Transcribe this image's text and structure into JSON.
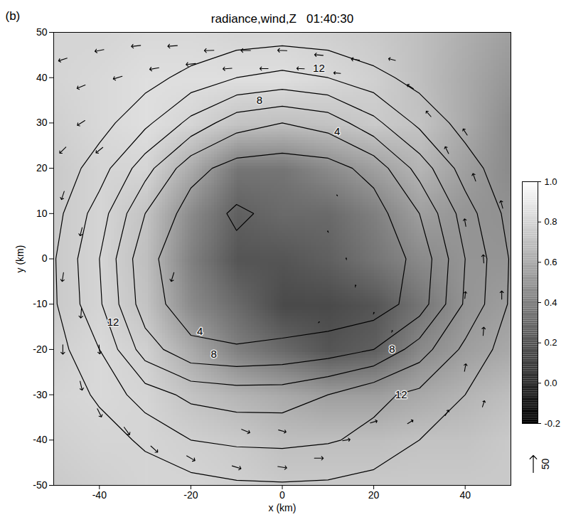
{
  "chart_data": {
    "type": "contour",
    "panel": "(b)",
    "title": "radiance,wind,Z   01:40:30",
    "x_label": "x (km)",
    "y_label": "y (km)",
    "xlim": [
      -50,
      50
    ],
    "ylim": [
      -50,
      50
    ],
    "xticks": [
      -40,
      -20,
      0,
      20,
      40
    ],
    "yticks": [
      50,
      40,
      30,
      20,
      10,
      0,
      -10,
      -20,
      -30,
      -40,
      -50
    ],
    "grid_x": [
      -50,
      -40,
      -30,
      -20,
      -10,
      0,
      10,
      20,
      30,
      40,
      50
    ],
    "grid_y": [
      50,
      40,
      30,
      20,
      10,
      0,
      -10,
      -20,
      -30,
      -40,
      -50
    ],
    "radiance": [
      [
        0.8,
        0.8,
        0.82,
        0.82,
        0.8,
        0.8,
        0.78,
        0.75,
        0.7,
        0.62,
        0.55
      ],
      [
        0.8,
        0.82,
        0.85,
        0.85,
        0.85,
        0.85,
        0.82,
        0.78,
        0.7,
        0.6,
        0.5
      ],
      [
        0.78,
        0.82,
        0.85,
        0.8,
        0.72,
        0.7,
        0.72,
        0.75,
        0.72,
        0.6,
        0.45
      ],
      [
        0.75,
        0.8,
        0.8,
        0.6,
        0.35,
        0.35,
        0.45,
        0.55,
        0.65,
        0.55,
        0.45
      ],
      [
        0.75,
        0.8,
        0.72,
        0.45,
        0.25,
        0.3,
        0.3,
        0.4,
        0.55,
        0.5,
        0.48
      ],
      [
        0.75,
        0.8,
        0.7,
        0.4,
        0.2,
        0.2,
        0.25,
        0.35,
        0.45,
        0.5,
        0.5
      ],
      [
        0.75,
        0.8,
        0.72,
        0.45,
        0.3,
        0.15,
        0.15,
        0.2,
        0.35,
        0.5,
        0.55
      ],
      [
        0.78,
        0.82,
        0.78,
        0.6,
        0.4,
        0.3,
        0.2,
        0.25,
        0.45,
        0.55,
        0.6
      ],
      [
        0.8,
        0.82,
        0.8,
        0.72,
        0.65,
        0.6,
        0.55,
        0.55,
        0.6,
        0.65,
        0.7
      ],
      [
        0.78,
        0.8,
        0.8,
        0.78,
        0.75,
        0.7,
        0.7,
        0.7,
        0.72,
        0.72,
        0.75
      ],
      [
        0.75,
        0.78,
        0.8,
        0.8,
        0.78,
        0.75,
        0.75,
        0.75,
        0.75,
        0.75,
        0.75
      ]
    ],
    "z": [
      [
        17.5,
        17,
        16.6,
        16,
        15.3,
        15.1,
        15.3,
        16,
        16.6,
        17,
        17.5
      ],
      [
        17,
        16.3,
        14.8,
        13.3,
        12,
        11.4,
        12,
        13.3,
        14.8,
        16.3,
        17
      ],
      [
        16.5,
        14.8,
        12.5,
        9.4,
        6.8,
        6,
        6.8,
        9.4,
        12.5,
        14.8,
        16.5
      ],
      [
        15.5,
        13,
        8.8,
        4.7,
        3.2,
        3,
        3.2,
        4.7,
        8.8,
        13,
        15.5
      ],
      [
        14.8,
        11,
        6,
        3.1,
        1.7,
        2.5,
        2.6,
        3.1,
        6,
        11,
        14.8
      ],
      [
        14.2,
        10,
        4.5,
        2.8,
        2.5,
        2.5,
        2.5,
        2.8,
        4.5,
        10,
        14.2
      ],
      [
        14.3,
        10.3,
        4.9,
        2.9,
        2.5,
        2.5,
        2.5,
        2.9,
        4.9,
        10.3,
        14.3
      ],
      [
        15,
        12,
        7,
        4.5,
        4.2,
        4.5,
        5,
        6,
        9,
        12.5,
        15
      ],
      [
        16,
        13.5,
        11,
        9.5,
        9,
        9,
        10,
        11.5,
        12.5,
        14,
        16
      ],
      [
        16.8,
        15.3,
        13.5,
        12,
        11.6,
        11.5,
        11.8,
        12.5,
        14,
        15.3,
        16.8
      ],
      [
        17.3,
        16.5,
        15.5,
        14.8,
        14.3,
        14.2,
        14.3,
        14.8,
        15.5,
        16.5,
        17.3
      ]
    ],
    "contour_levels": [
      2,
      4,
      6,
      8,
      10,
      12,
      14
    ],
    "contour_labels": {
      "x": [
        8,
        -5,
        12,
        -18,
        -15,
        24,
        26,
        -37
      ],
      "y": [
        42,
        35,
        28,
        -16,
        -21,
        -20,
        -30,
        -14
      ],
      "values": [
        12,
        8,
        4,
        4,
        8,
        8,
        12,
        12
      ]
    },
    "wind": {
      "x": [
        -48,
        -40,
        -32,
        -24,
        -16,
        -8,
        0,
        8,
        16,
        24,
        -44,
        -36,
        -28,
        -20,
        -12,
        -4,
        4,
        12,
        -44,
        -48,
        -40,
        -48,
        -44,
        -48,
        -44,
        -48,
        -40,
        -44,
        -40,
        -34,
        -28,
        -20,
        -10,
        0,
        8,
        14,
        20,
        28,
        36,
        44,
        -8,
        0,
        40,
        44,
        48,
        40,
        44,
        40,
        48,
        42,
        36,
        40,
        32,
        28,
        -24,
        10,
        14,
        16,
        20,
        8,
        24,
        12
      ],
      "y": [
        44,
        46,
        47,
        47,
        46,
        46,
        46,
        45,
        44,
        44,
        38,
        40,
        42,
        43,
        42,
        42,
        42,
        41,
        30,
        24,
        24,
        14,
        6,
        -4,
        -12,
        -20,
        -20,
        -28,
        -34,
        -38,
        -42,
        -44,
        -46,
        -46,
        -44,
        -40,
        -36,
        -36,
        -34,
        -32,
        -38,
        -38,
        -24,
        -16,
        -8,
        -8,
        0,
        8,
        12,
        18,
        24,
        28,
        32,
        38,
        -4,
        6,
        0,
        -6,
        -12,
        -14,
        -16,
        14
      ],
      "u": [
        -25,
        -26,
        -27,
        -28,
        -28,
        -28,
        -27,
        -25,
        -24,
        -20,
        -24,
        -26,
        -27,
        -28,
        -26,
        -24,
        -22,
        -20,
        -22,
        -18,
        -20,
        -8,
        -6,
        -4,
        -2,
        0,
        2,
        6,
        12,
        16,
        20,
        24,
        26,
        26,
        26,
        22,
        20,
        16,
        10,
        6,
        24,
        22,
        4,
        2,
        0,
        2,
        -2,
        -4,
        -6,
        -8,
        -10,
        -12,
        -14,
        -18,
        -8,
        -2,
        -1,
        1,
        2,
        3,
        2,
        -2
      ],
      "v": [
        -8,
        -5,
        -3,
        -2,
        -1,
        0,
        1,
        2,
        3,
        5,
        -10,
        -8,
        -5,
        -3,
        -2,
        0,
        1,
        2,
        -14,
        -18,
        -16,
        -24,
        -24,
        -26,
        -28,
        -28,
        -26,
        -26,
        -24,
        -22,
        -18,
        -14,
        -8,
        -4,
        0,
        4,
        6,
        10,
        16,
        18,
        -10,
        -6,
        22,
        24,
        24,
        20,
        24,
        22,
        22,
        22,
        20,
        18,
        16,
        12,
        -26,
        4,
        5,
        6,
        5,
        3,
        5,
        3
      ]
    },
    "wind_reference": 50,
    "colorbar": {
      "lim": [
        -0.2,
        1.0
      ],
      "ticks": [
        -0.2,
        {
          "value": 0,
          "label": "0.0"
        },
        0.2,
        0.4,
        0.6,
        0.8,
        {
          "value": 1,
          "label": "1.0"
        }
      ]
    }
  }
}
